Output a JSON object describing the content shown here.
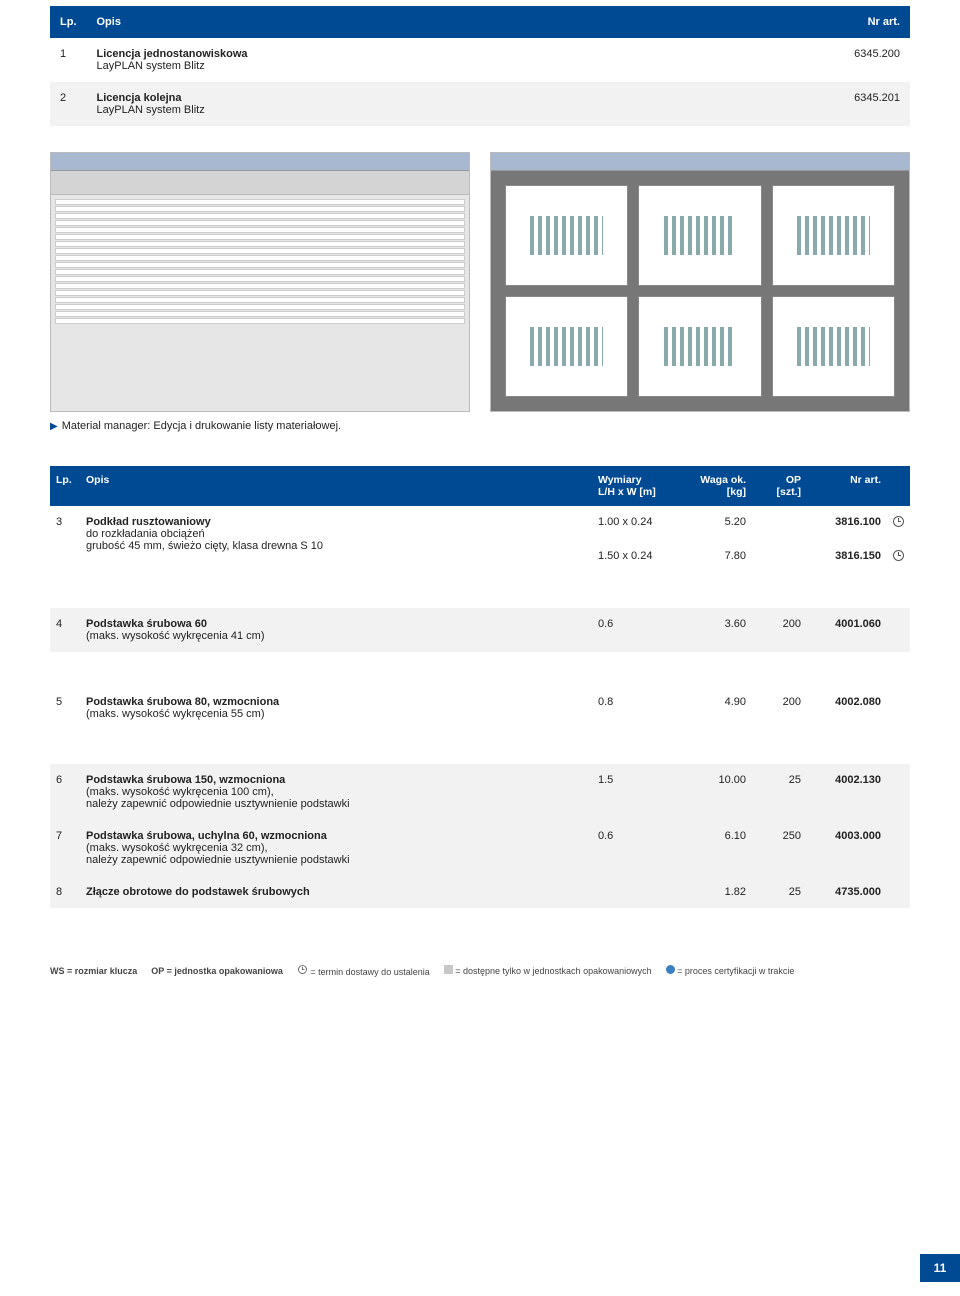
{
  "table1": {
    "headers": {
      "lp": "Lp.",
      "opis": "Opis",
      "nr_art": "Nr art."
    },
    "rows": [
      {
        "num": "1",
        "title": "Licencja jednostanowiskowa",
        "sub": "LayPLAN system Blitz",
        "art": "6345.200"
      },
      {
        "num": "2",
        "title": "Licencja kolejna",
        "sub": "LayPLAN system Blitz",
        "art": "6345.201"
      }
    ]
  },
  "caption": "Material manager: Edycja i drukowanie listy materiałowej.",
  "table2": {
    "headers": {
      "lp": "Lp.",
      "opis": "Opis",
      "dim_l1": "Wymiary",
      "dim_l2": "L/H x W [m]",
      "wt_l1": "Waga ok.",
      "wt_l2": "[kg]",
      "op_l1": "OP",
      "op_l2": "[szt.]",
      "art": "Nr art."
    },
    "rows": [
      {
        "num": "3",
        "title": "Podkład rusztowaniowy",
        "sub": "do rozkładania obciążeń",
        "sub2": "grubość 45 mm, świeżo cięty, klasa drewna S 10",
        "lines": [
          {
            "dim": "1.00 x 0.24",
            "wt": "5.20",
            "op": "",
            "art": "3816.100",
            "clock": true
          },
          {
            "dim": "1.50 x 0.24",
            "wt": "7.80",
            "op": "",
            "art": "3816.150",
            "clock": true
          }
        ],
        "bg": "w"
      },
      {
        "num": "4",
        "title": "Podstawka śrubowa 60",
        "sub": "(maks. wysokość wykręcenia 41 cm)",
        "lines": [
          {
            "dim": "0.6",
            "wt": "3.60",
            "op": "200",
            "art": "4001.060",
            "clock": false
          }
        ],
        "bg": "g"
      },
      {
        "num": "5",
        "title": "Podstawka śrubowa 80, wzmocniona",
        "sub": "(maks. wysokość wykręcenia 55 cm)",
        "lines": [
          {
            "dim": "0.8",
            "wt": "4.90",
            "op": "200",
            "art": "4002.080",
            "clock": false
          }
        ],
        "bg": "w"
      },
      {
        "num": "6",
        "title": "Podstawka śrubowa 150, wzmocniona",
        "sub": "(maks. wysokość wykręcenia 100 cm),",
        "sub2": "należy zapewnić odpowiednie usztywnienie podstawki",
        "lines": [
          {
            "dim": "1.5",
            "wt": "10.00",
            "op": "25",
            "art": "4002.130",
            "clock": false
          }
        ],
        "bg": "g"
      },
      {
        "num": "7",
        "title": "Podstawka śrubowa, uchylna 60, wzmocniona",
        "sub": "(maks. wysokość wykręcenia 32 cm),",
        "sub2": "należy zapewnić odpowiednie usztywnienie podstawki",
        "lines": [
          {
            "dim": "0.6",
            "wt": "6.10",
            "op": "250",
            "art": "4003.000",
            "clock": false
          }
        ],
        "bg": "g"
      },
      {
        "num": "8",
        "title": "Złącze obrotowe do podstawek śrubowych",
        "sub": "",
        "lines": [
          {
            "dim": "",
            "wt": "1.82",
            "op": "25",
            "art": "4735.000",
            "clock": false
          }
        ],
        "bg": "g"
      }
    ]
  },
  "legend": {
    "ws": "WS = rozmiar klucza",
    "op": "OP = jednostka opakowaniowa",
    "clock": " = termin dostawy do ustalenia",
    "grey": " = dostępne tylko w jednostkach opakowaniowych",
    "blue": " = proces certyfikacji w trakcie"
  },
  "page_number": "11",
  "colors": {
    "header_bg": "#004a93",
    "row_grey": "#f2f2f2"
  }
}
